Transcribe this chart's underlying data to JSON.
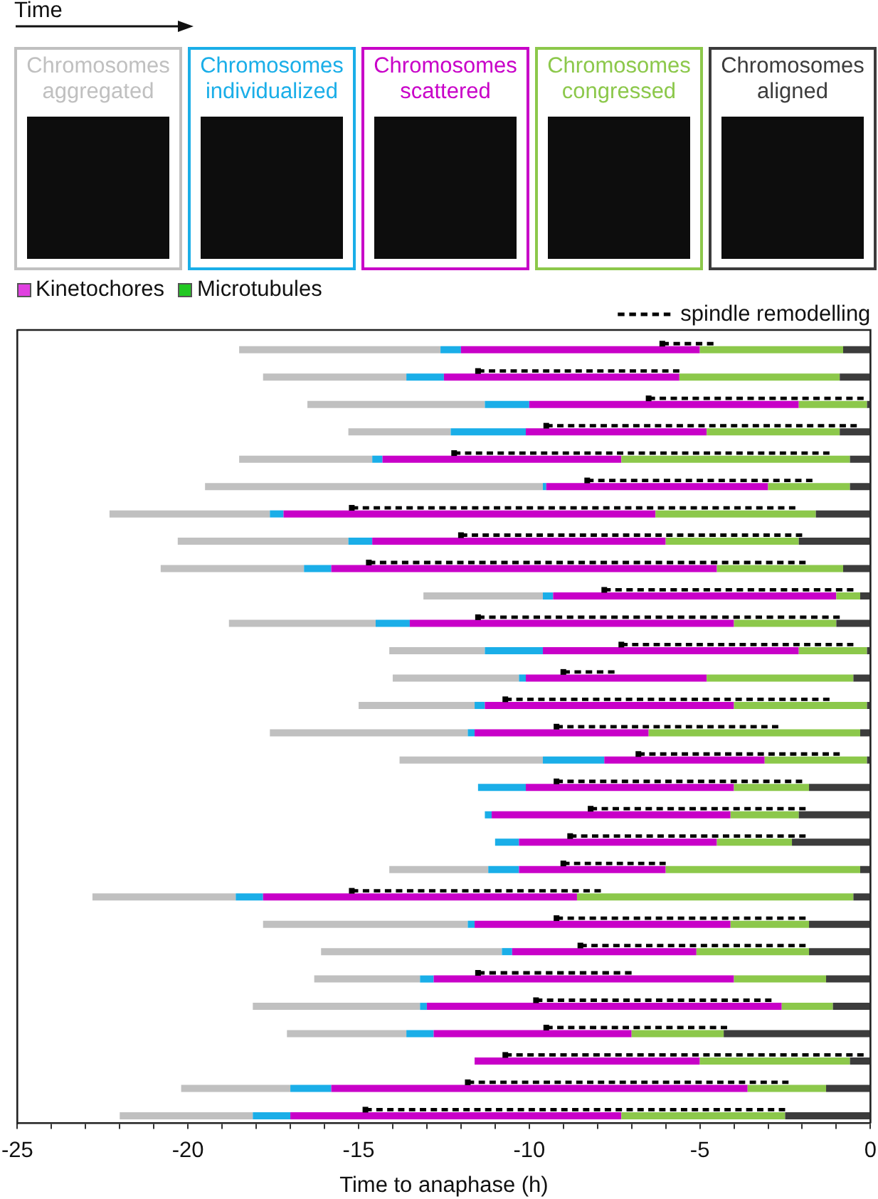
{
  "chart_data": {
    "type": "bar",
    "orientation": "horizontal",
    "stacked": true,
    "legend": "top",
    "tick_labels": "x",
    "xlabel": "Time to anaphase (h)",
    "annotations": [
      "Time",
      "Kinetochores",
      "Microtubules"
    ],
    "categories": [
      null,
      null,
      null,
      null,
      null,
      null,
      null,
      null,
      null,
      null,
      null,
      null,
      null,
      null,
      null,
      null,
      null,
      null,
      null,
      null,
      null,
      null,
      null,
      null,
      null,
      null,
      null,
      null,
      null
    ],
    "series": [
      {
        "name": "Chromosomes aligned",
        "color": "#3c3c3c",
        "values": [
          -0.8,
          -0.9,
          -0.1,
          -0.9,
          -0.6,
          -0.6,
          -1.6,
          -2.1,
          -0.8,
          -0.3,
          -1.0,
          -0.1,
          -0.5,
          -0.1,
          -0.3,
          -0.1,
          -1.8,
          -2.1,
          -2.3,
          -0.3,
          -0.5,
          -1.8,
          -1.8,
          -1.3,
          -1.1,
          -4.3,
          -0.6,
          -1.3,
          -2.5
        ]
      },
      {
        "name": "Chromosomes congressed",
        "color": "#8cc84b",
        "values": [
          -4.2,
          -4.7,
          -2.0,
          -3.9,
          -6.7,
          -2.4,
          -4.7,
          -3.9,
          -3.7,
          -0.7,
          -3.0,
          -2.0,
          -4.3,
          -3.9,
          -6.2,
          -3.0,
          -2.2,
          -2.0,
          -2.2,
          -5.7,
          -8.1,
          -2.3,
          -3.3,
          -2.7,
          -1.5,
          -2.7,
          -4.4,
          -2.3,
          -4.8
        ]
      },
      {
        "name": "Chromosomes scattered",
        "color": "#c800c8",
        "values": [
          -7.0,
          -6.9,
          -7.9,
          -5.3,
          -7.0,
          -6.5,
          -10.9,
          -8.6,
          -11.3,
          -8.3,
          -9.5,
          -7.5,
          -5.3,
          -7.3,
          -5.1,
          -4.7,
          -6.1,
          -7.0,
          -5.8,
          -4.3,
          -9.2,
          -7.5,
          -5.4,
          -8.8,
          -10.4,
          -5.8,
          -6.6,
          -12.2,
          -9.7
        ]
      },
      {
        "name": "Chromosomes individualized",
        "color": "#1aaee8",
        "values": [
          -0.6,
          -1.1,
          -1.3,
          -2.2,
          -0.3,
          -0.1,
          -0.4,
          -0.7,
          -0.8,
          -0.3,
          -1.0,
          -1.7,
          -0.2,
          -0.3,
          -0.2,
          -1.8,
          -1.4,
          -0.2,
          -0.7,
          -0.9,
          -0.8,
          -0.2,
          -0.3,
          -0.4,
          -0.2,
          -0.8,
          null,
          -1.2,
          -1.1
        ]
      },
      {
        "name": "Chromosomes aggregated",
        "color": "#c0c0c0",
        "values": [
          -5.9,
          -4.2,
          -5.2,
          -3.0,
          -3.9,
          -9.9,
          -4.7,
          -5.0,
          -4.2,
          -3.5,
          -4.3,
          -2.8,
          -3.7,
          -3.4,
          -5.8,
          -4.2,
          null,
          null,
          null,
          -2.9,
          -4.2,
          -6.0,
          -5.3,
          -3.1,
          -4.9,
          -3.5,
          null,
          -3.2,
          -3.9
        ]
      },
      {
        "name": "spindle remodelling",
        "type": "scatter",
        "marker": "square",
        "line_style": "dashed",
        "color": "#000000",
        "values": [
          -6.1,
          -11.5,
          -6.5,
          -9.5,
          -12.2,
          -8.3,
          -15.2,
          -12.0,
          -14.7,
          -7.8,
          -11.5,
          -7.3,
          -9.0,
          -10.7,
          -9.2,
          -6.8,
          -9.2,
          -8.2,
          -8.8,
          -9.0,
          -15.2,
          -9.2,
          -8.5,
          -11.5,
          -9.8,
          -9.5,
          -10.7,
          -11.8,
          -14.8
        ],
        "errors": [
          [
            -6.1,
            -4.6
          ],
          [
            -11.5,
            -5.6
          ],
          [
            -6.5,
            -0.2
          ],
          [
            -9.5,
            -0.4
          ],
          [
            -12.2,
            -1.2
          ],
          [
            -8.3,
            -1.7
          ],
          [
            -15.2,
            -2.2
          ],
          [
            -12.0,
            -2.0
          ],
          [
            -14.7,
            -1.9
          ],
          [
            -7.8,
            -0.5
          ],
          [
            -11.5,
            -0.9
          ],
          [
            -7.3,
            -0.5
          ],
          [
            -9.0,
            -7.5
          ],
          [
            -10.7,
            -1.2
          ],
          [
            -9.2,
            -2.7
          ],
          [
            -6.8,
            -0.9
          ],
          [
            -9.2,
            -2.0
          ],
          [
            -8.2,
            -1.9
          ],
          [
            -8.8,
            -1.9
          ],
          [
            -9.0,
            -6.0
          ],
          [
            -15.2,
            -7.9
          ],
          [
            -9.2,
            -1.9
          ],
          [
            -8.5,
            -1.9
          ],
          [
            -11.5,
            -7.0
          ],
          [
            -9.8,
            -2.9
          ],
          [
            -9.5,
            -4.2
          ],
          [
            -10.7,
            -0.2
          ],
          [
            -11.8,
            -2.4
          ],
          [
            -14.8,
            -2.5
          ]
        ]
      }
    ],
    "xlim": [
      -25,
      0
    ],
    "xticks": [
      -25,
      {
        "value": -24,
        "label": null
      },
      {
        "value": -23,
        "label": null
      },
      {
        "value": -22,
        "label": null
      },
      {
        "value": -21,
        "label": null
      },
      -20,
      {
        "value": -19,
        "label": null
      },
      {
        "value": -18,
        "label": null
      },
      {
        "value": -17,
        "label": null
      },
      {
        "value": -16,
        "label": null
      },
      -15,
      {
        "value": -14,
        "label": null
      },
      {
        "value": -13,
        "label": null
      },
      {
        "value": -12,
        "label": null
      },
      {
        "value": -11,
        "label": null
      },
      -10,
      {
        "value": -9,
        "label": null
      },
      {
        "value": -8,
        "label": null
      },
      {
        "value": -7,
        "label": null
      },
      {
        "value": -6,
        "label": null
      },
      -5,
      {
        "value": -4,
        "label": null
      },
      {
        "value": -3,
        "label": null
      },
      {
        "value": -2,
        "label": null
      },
      {
        "value": -1,
        "label": null
      },
      0
    ]
  }
}
